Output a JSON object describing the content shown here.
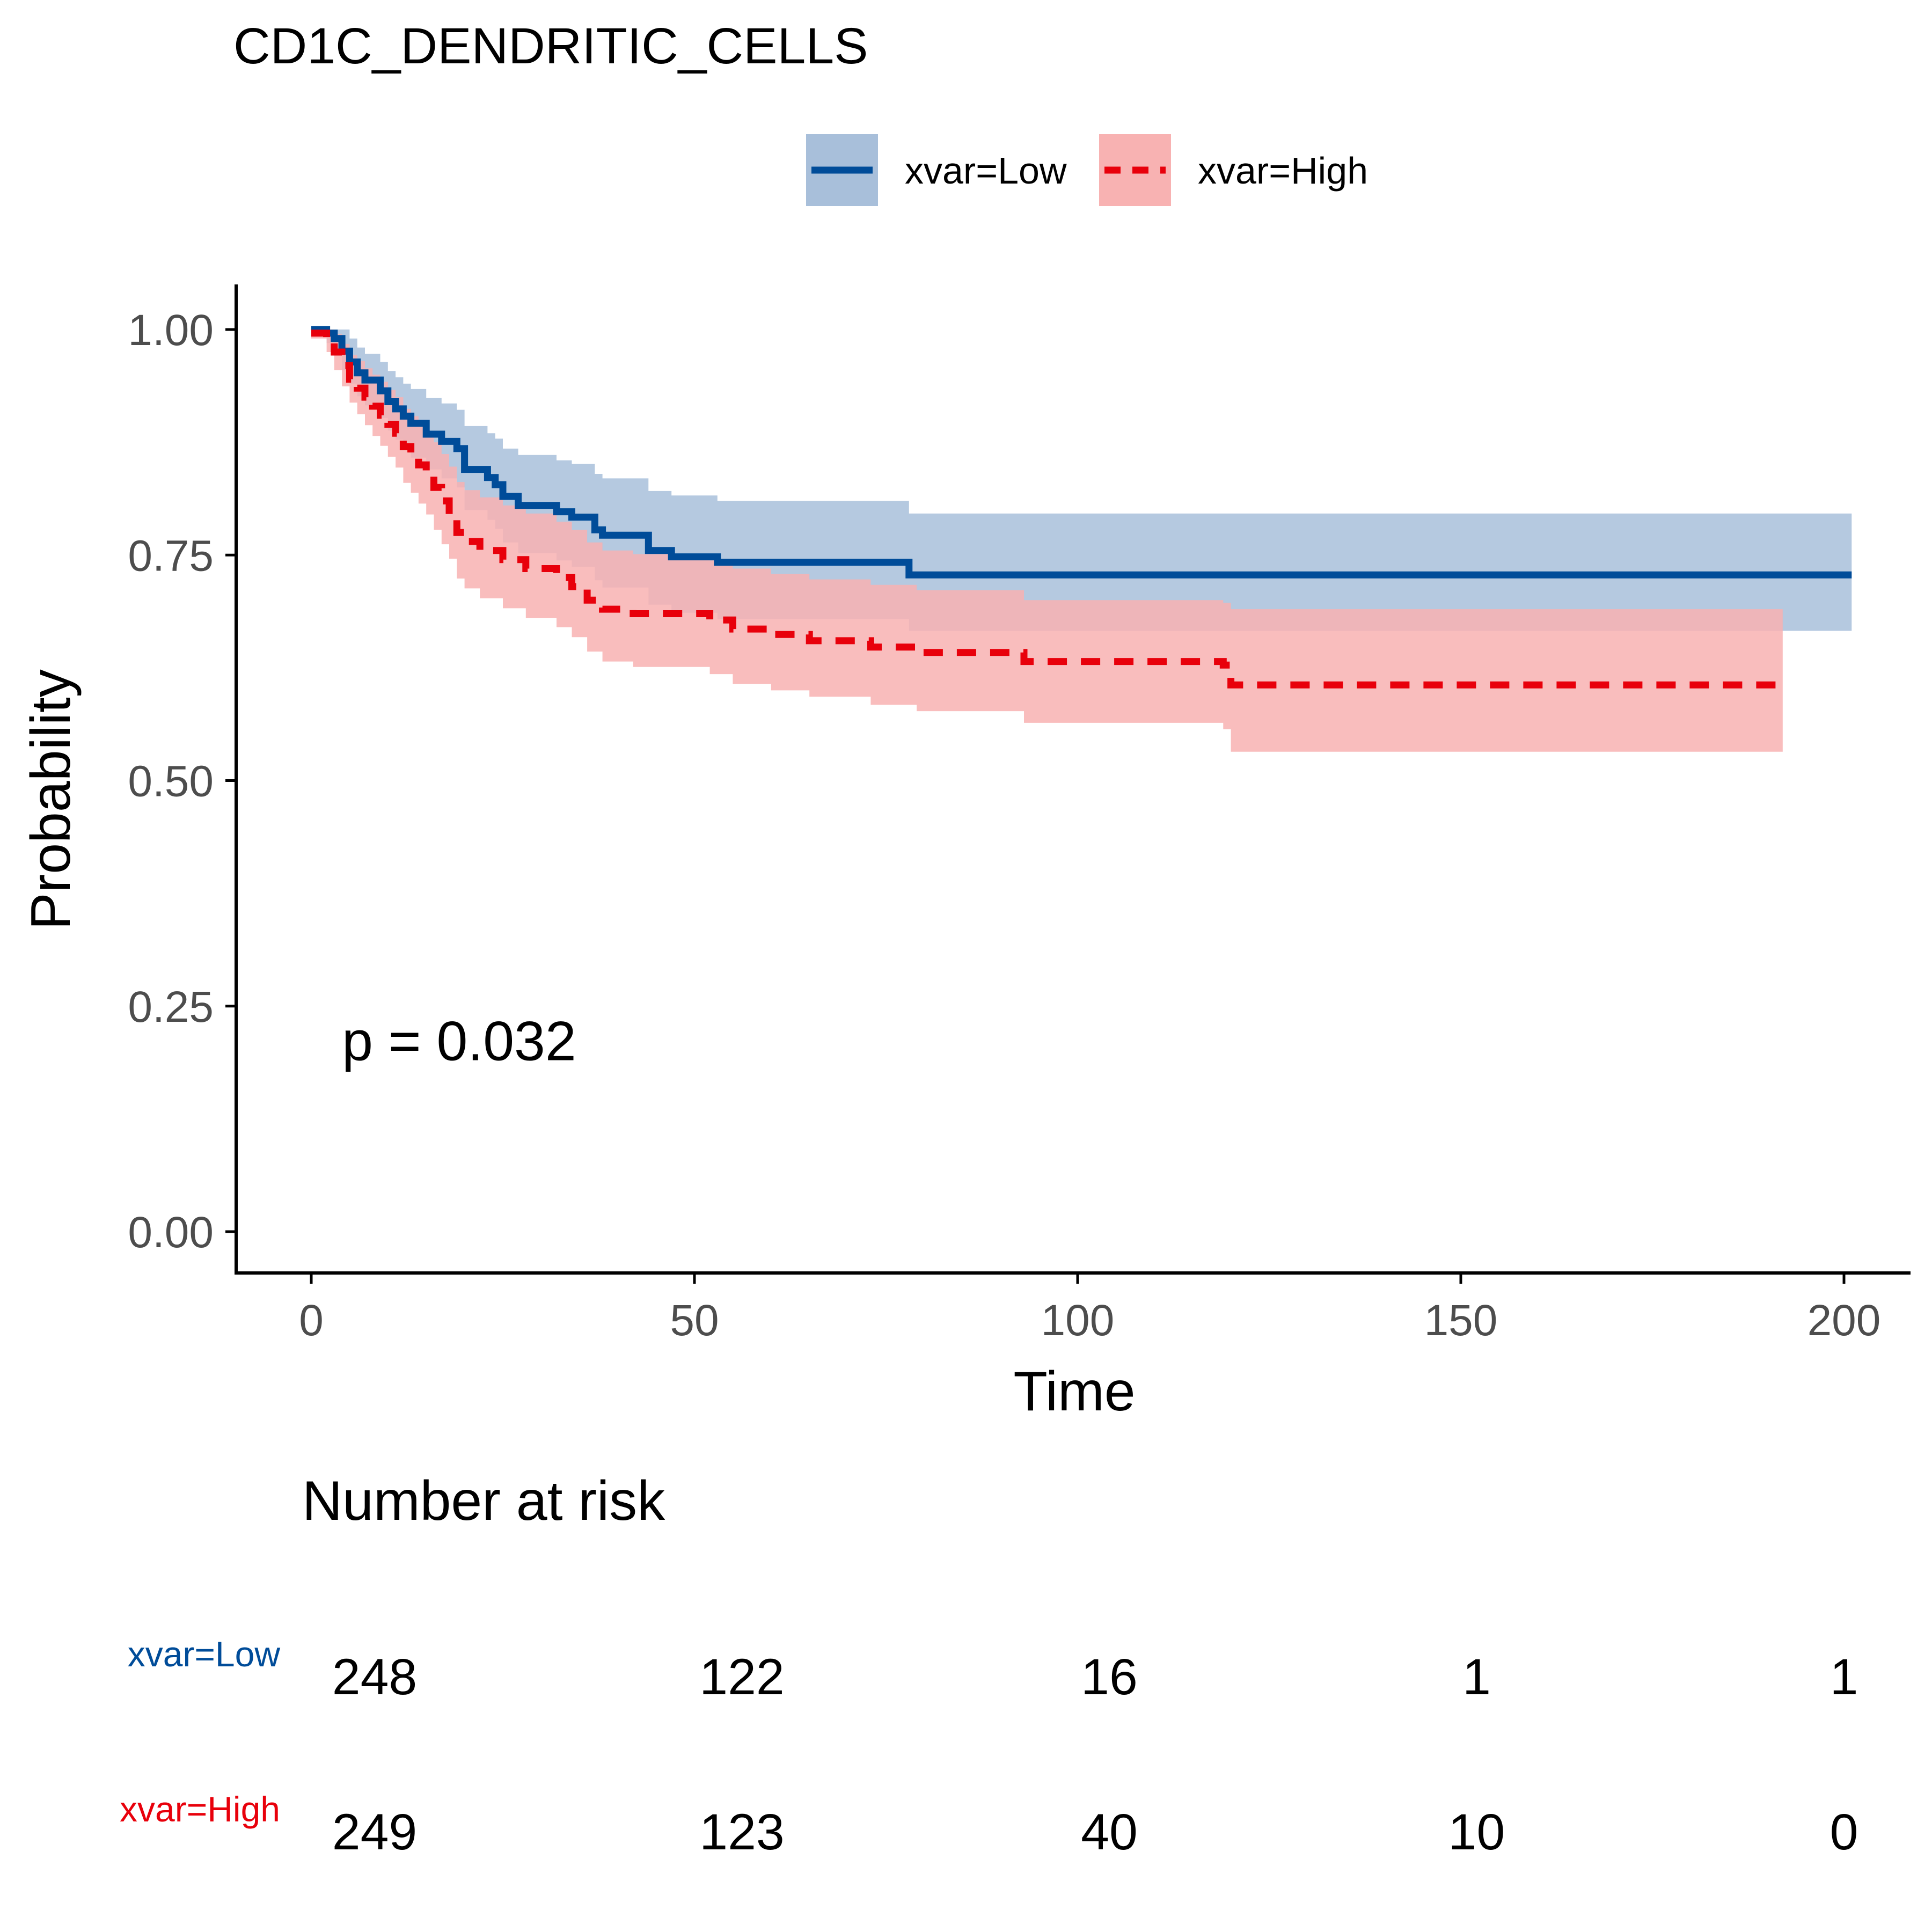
{
  "chart_data": {
    "type": "line",
    "subtype": "kaplan-meier survival curve with 95% confidence bands",
    "title": "CD1C_DENDRITIC_CELLS",
    "xlabel": "Time",
    "ylabel": "Probability",
    "xlim": [
      -10,
      210
    ],
    "ylim": [
      -0.05,
      1.05
    ],
    "x_ticks": [
      0,
      50,
      100,
      150,
      200
    ],
    "x_tick_labels": [
      "0",
      "50",
      "100",
      "150",
      "200"
    ],
    "y_ticks": [
      0,
      0.25,
      0.5,
      0.75,
      1.0
    ],
    "y_tick_labels": [
      "0.00",
      "0.25",
      "0.50",
      "0.75",
      "1.00"
    ],
    "grid": false,
    "legend_position": "top",
    "annotation": "p = 0.032",
    "annotation_position": {
      "x": 4,
      "y": 0.19
    },
    "series": [
      {
        "name": "xvar=Low",
        "color": "#004C99",
        "band_color": "#A8BFDA",
        "linestyle": "solid",
        "steps": [
          [
            0,
            1.0
          ],
          [
            2,
            0.996
          ],
          [
            3,
            0.99
          ],
          [
            4,
            0.976
          ],
          [
            5,
            0.964
          ],
          [
            6,
            0.952
          ],
          [
            7,
            0.944
          ],
          [
            9,
            0.932
          ],
          [
            10,
            0.92
          ],
          [
            11,
            0.912
          ],
          [
            12,
            0.904
          ],
          [
            13,
            0.896
          ],
          [
            15,
            0.884
          ],
          [
            17,
            0.876
          ],
          [
            19,
            0.868
          ],
          [
            20,
            0.845
          ],
          [
            23,
            0.836
          ],
          [
            24,
            0.828
          ],
          [
            25,
            0.815
          ],
          [
            27,
            0.805
          ],
          [
            32,
            0.798
          ],
          [
            34,
            0.792
          ],
          [
            37,
            0.778
          ],
          [
            38,
            0.772
          ],
          [
            44,
            0.755
          ],
          [
            47,
            0.748
          ],
          [
            53,
            0.742
          ],
          [
            78,
            0.728
          ],
          [
            201,
            0.728
          ]
        ],
        "lower": [
          [
            0,
            1.0
          ],
          [
            2,
            0.985
          ],
          [
            3,
            0.972
          ],
          [
            4,
            0.955
          ],
          [
            5,
            0.94
          ],
          [
            6,
            0.926
          ],
          [
            7,
            0.916
          ],
          [
            9,
            0.902
          ],
          [
            10,
            0.888
          ],
          [
            11,
            0.878
          ],
          [
            12,
            0.868
          ],
          [
            13,
            0.858
          ],
          [
            15,
            0.845
          ],
          [
            17,
            0.835
          ],
          [
            19,
            0.825
          ],
          [
            20,
            0.8
          ],
          [
            23,
            0.789
          ],
          [
            24,
            0.779
          ],
          [
            25,
            0.764
          ],
          [
            27,
            0.752
          ],
          [
            32,
            0.744
          ],
          [
            34,
            0.737
          ],
          [
            37,
            0.722
          ],
          [
            38,
            0.714
          ],
          [
            44,
            0.695
          ],
          [
            47,
            0.686
          ],
          [
            53,
            0.679
          ],
          [
            78,
            0.666
          ],
          [
            201,
            0.666
          ]
        ],
        "upper": [
          [
            0,
            1.0
          ],
          [
            2,
            1.0
          ],
          [
            3,
            1.0
          ],
          [
            4,
            1.0
          ],
          [
            5,
            0.99
          ],
          [
            6,
            0.98
          ],
          [
            7,
            0.973
          ],
          [
            9,
            0.964
          ],
          [
            10,
            0.954
          ],
          [
            11,
            0.947
          ],
          [
            12,
            0.94
          ],
          [
            13,
            0.934
          ],
          [
            15,
            0.924
          ],
          [
            17,
            0.918
          ],
          [
            19,
            0.911
          ],
          [
            20,
            0.893
          ],
          [
            23,
            0.885
          ],
          [
            24,
            0.879
          ],
          [
            25,
            0.868
          ],
          [
            27,
            0.861
          ],
          [
            32,
            0.855
          ],
          [
            34,
            0.851
          ],
          [
            37,
            0.84
          ],
          [
            38,
            0.835
          ],
          [
            44,
            0.821
          ],
          [
            47,
            0.816
          ],
          [
            53,
            0.81
          ],
          [
            78,
            0.796
          ],
          [
            201,
            0.796
          ]
        ]
      },
      {
        "name": "xvar=High",
        "color": "#E8000B",
        "band_color": "#F8B2B2",
        "linestyle": "dashed",
        "steps": [
          [
            0,
            0.996
          ],
          [
            2,
            0.99
          ],
          [
            3,
            0.975
          ],
          [
            4,
            0.96
          ],
          [
            5,
            0.945
          ],
          [
            6,
            0.935
          ],
          [
            7,
            0.925
          ],
          [
            8,
            0.915
          ],
          [
            9,
            0.905
          ],
          [
            10,
            0.895
          ],
          [
            11,
            0.885
          ],
          [
            12,
            0.87
          ],
          [
            13,
            0.86
          ],
          [
            14,
            0.85
          ],
          [
            15,
            0.84
          ],
          [
            16,
            0.825
          ],
          [
            17,
            0.81
          ],
          [
            18,
            0.795
          ],
          [
            19,
            0.775
          ],
          [
            20,
            0.765
          ],
          [
            22,
            0.755
          ],
          [
            25,
            0.745
          ],
          [
            28,
            0.735
          ],
          [
            32,
            0.725
          ],
          [
            34,
            0.715
          ],
          [
            36,
            0.7
          ],
          [
            38,
            0.69
          ],
          [
            42,
            0.685
          ],
          [
            52,
            0.678
          ],
          [
            55,
            0.668
          ],
          [
            60,
            0.662
          ],
          [
            65,
            0.655
          ],
          [
            73,
            0.648
          ],
          [
            79,
            0.642
          ],
          [
            93,
            0.632
          ],
          [
            119,
            0.628
          ],
          [
            120,
            0.606
          ],
          [
            192,
            0.606
          ]
        ],
        "lower": [
          [
            0,
            0.99
          ],
          [
            2,
            0.975
          ],
          [
            3,
            0.955
          ],
          [
            4,
            0.937
          ],
          [
            5,
            0.919
          ],
          [
            6,
            0.906
          ],
          [
            7,
            0.894
          ],
          [
            8,
            0.882
          ],
          [
            9,
            0.871
          ],
          [
            10,
            0.859
          ],
          [
            11,
            0.847
          ],
          [
            12,
            0.83
          ],
          [
            13,
            0.819
          ],
          [
            14,
            0.807
          ],
          [
            15,
            0.795
          ],
          [
            16,
            0.778
          ],
          [
            17,
            0.762
          ],
          [
            18,
            0.746
          ],
          [
            19,
            0.724
          ],
          [
            20,
            0.713
          ],
          [
            22,
            0.702
          ],
          [
            25,
            0.691
          ],
          [
            28,
            0.68
          ],
          [
            32,
            0.67
          ],
          [
            34,
            0.659
          ],
          [
            36,
            0.643
          ],
          [
            38,
            0.632
          ],
          [
            42,
            0.626
          ],
          [
            52,
            0.618
          ],
          [
            55,
            0.607
          ],
          [
            60,
            0.6
          ],
          [
            65,
            0.593
          ],
          [
            73,
            0.584
          ],
          [
            79,
            0.577
          ],
          [
            93,
            0.564
          ],
          [
            119,
            0.557
          ],
          [
            120,
            0.532
          ],
          [
            192,
            0.532
          ]
        ],
        "upper": [
          [
            0,
            1.0
          ],
          [
            2,
            1.0
          ],
          [
            3,
            0.995
          ],
          [
            4,
            0.984
          ],
          [
            5,
            0.972
          ],
          [
            6,
            0.965
          ],
          [
            7,
            0.957
          ],
          [
            8,
            0.95
          ],
          [
            9,
            0.942
          ],
          [
            10,
            0.933
          ],
          [
            11,
            0.925
          ],
          [
            12,
            0.912
          ],
          [
            13,
            0.904
          ],
          [
            14,
            0.896
          ],
          [
            15,
            0.887
          ],
          [
            16,
            0.875
          ],
          [
            17,
            0.862
          ],
          [
            18,
            0.848
          ],
          [
            19,
            0.831
          ],
          [
            20,
            0.822
          ],
          [
            22,
            0.814
          ],
          [
            25,
            0.805
          ],
          [
            28,
            0.796
          ],
          [
            32,
            0.787
          ],
          [
            34,
            0.778
          ],
          [
            36,
            0.764
          ],
          [
            38,
            0.755
          ],
          [
            42,
            0.751
          ],
          [
            52,
            0.744
          ],
          [
            55,
            0.735
          ],
          [
            60,
            0.729
          ],
          [
            65,
            0.723
          ],
          [
            73,
            0.717
          ],
          [
            79,
            0.711
          ],
          [
            93,
            0.7
          ],
          [
            119,
            0.697
          ],
          [
            120,
            0.69
          ],
          [
            192,
            0.69
          ]
        ]
      }
    ],
    "risk_table": {
      "title": "Number at risk",
      "times": [
        0,
        50,
        100,
        150,
        200
      ],
      "rows": [
        {
          "name": "xvar=Low",
          "color": "#004C99",
          "values": [
            248,
            122,
            16,
            1,
            1
          ]
        },
        {
          "name": "xvar=High",
          "color": "#E8000B",
          "values": [
            249,
            123,
            40,
            10,
            0
          ]
        }
      ]
    }
  }
}
